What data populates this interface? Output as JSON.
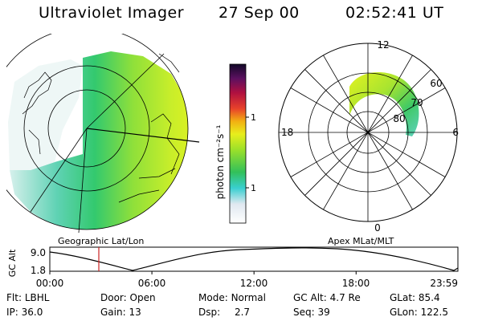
{
  "header": {
    "title": "Ultraviolet Imager",
    "date": "27 Sep 00",
    "time": "02:52:41 UT"
  },
  "panels": {
    "geo_label": "Geographic Lat/Lon",
    "apex_label": "Apex MLat/MLT"
  },
  "colorbar": {
    "unit_label": "photon cm⁻²s⁻¹",
    "ticks": [
      "100",
      "10"
    ],
    "scale": "log"
  },
  "polar": {
    "hour_labels": [
      "12",
      "18",
      "6",
      "0"
    ],
    "lat_labels": [
      "60",
      "70",
      "80"
    ]
  },
  "altitude_plot": {
    "ylabel": "GC Alt",
    "yticks": [
      "9.0",
      "1.8"
    ],
    "xticks": [
      "00:00",
      "06:00",
      "12:00",
      "18:00",
      "23:59"
    ],
    "current_time_hours": 2.88
  },
  "info": {
    "filter_label": "Flt:",
    "filter_value": "LBHL",
    "door_label": "Door:",
    "door_value": "Open",
    "mode_label": "Mode:",
    "mode_value": "Normal",
    "gc_alt_label": "GC Alt:",
    "gc_alt_value": "4.7 Re",
    "glat_label": "GLat:",
    "glat_value": "85.4",
    "ip_label": "IP:",
    "ip_value": "36.0",
    "gain_label": "Gain:",
    "gain_value": "13",
    "dsp_label": "Dsp:",
    "dsp_value": "2.7",
    "seq_label": "Seq:",
    "seq_value": "39",
    "glon_label": "GLon:",
    "glon_value": "122.5"
  },
  "colors": {
    "red_marker": "#cc2222"
  }
}
